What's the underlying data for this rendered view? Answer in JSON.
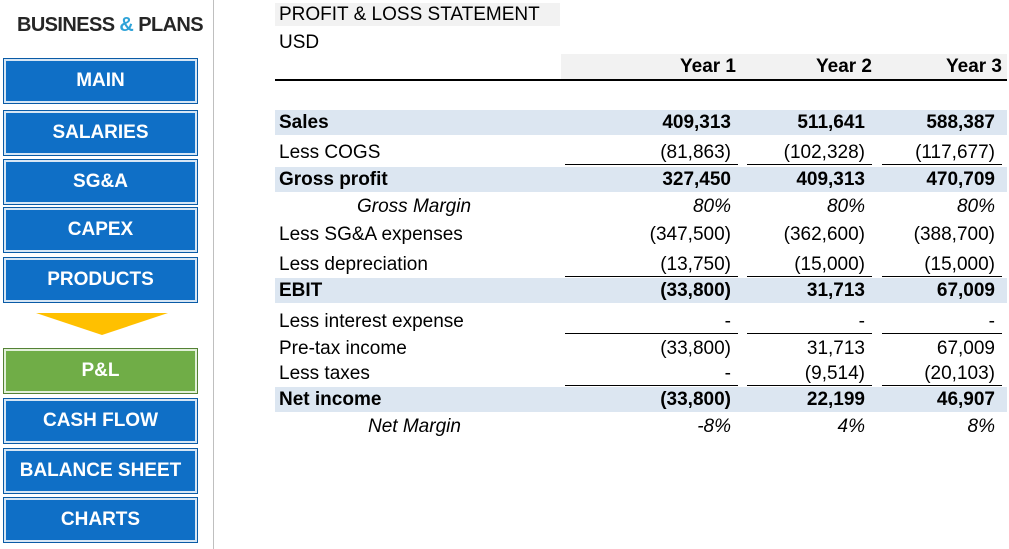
{
  "sidebar": {
    "brand": {
      "part1": "BUSINESS ",
      "amp": "&",
      "part2": " PLANS"
    },
    "items": [
      {
        "label": "MAIN"
      },
      {
        "label": "SALARIES"
      },
      {
        "label": "SG&A"
      },
      {
        "label": "CAPEX"
      },
      {
        "label": "PRODUCTS"
      },
      {
        "label": "P&L",
        "active": true
      },
      {
        "label": "CASH FLOW"
      },
      {
        "label": "BALANCE SHEET"
      },
      {
        "label": "CHARTS"
      }
    ],
    "colors": {
      "button": "#0f6fc6",
      "active": "#70ad47",
      "arrow": "#ffc000"
    }
  },
  "statement": {
    "title": "PROFIT & LOSS STATEMENT",
    "currency": "USD",
    "years": [
      "Year 1",
      "Year 2",
      "Year 3"
    ],
    "rows": [
      {
        "label": "Sales",
        "values": [
          "409,313",
          "511,641",
          "588,387"
        ],
        "style": "bold-shaded"
      },
      {
        "label": "Less COGS",
        "values": [
          "(81,863)",
          "(102,328)",
          "(117,677)"
        ],
        "style": "underline"
      },
      {
        "label": "Gross profit",
        "values": [
          "327,450",
          "409,313",
          "470,709"
        ],
        "style": "bold-shaded"
      },
      {
        "label": "Gross Margin",
        "values": [
          "80%",
          "80%",
          "80%"
        ],
        "style": "italic-indent"
      },
      {
        "label": "Less SG&A expenses",
        "values": [
          "(347,500)",
          "(362,600)",
          "(388,700)"
        ],
        "style": "plain"
      },
      {
        "label": "Less depreciation",
        "values": [
          "(13,750)",
          "(15,000)",
          "(15,000)"
        ],
        "style": "underline"
      },
      {
        "label": "EBIT",
        "values": [
          "(33,800)",
          "31,713",
          "67,009"
        ],
        "style": "bold-shaded"
      },
      {
        "label": "Less interest expense",
        "values": [
          "-",
          "-",
          "-"
        ],
        "style": "underline"
      },
      {
        "label": "Pre-tax income",
        "values": [
          "(33,800)",
          "31,713",
          "67,009"
        ],
        "style": "plain"
      },
      {
        "label": "Less taxes",
        "values": [
          "-",
          "(9,514)",
          "(20,103)"
        ],
        "style": "underline"
      },
      {
        "label": "Net income",
        "values": [
          "(33,800)",
          "22,199",
          "46,907"
        ],
        "style": "bold-shaded"
      },
      {
        "label": "Net Margin",
        "values": [
          "-8%",
          "4%",
          "8%"
        ],
        "style": "italic-indent"
      }
    ],
    "colors": {
      "shade": "#dce6f1",
      "header_band": "#f2f2f2"
    }
  }
}
